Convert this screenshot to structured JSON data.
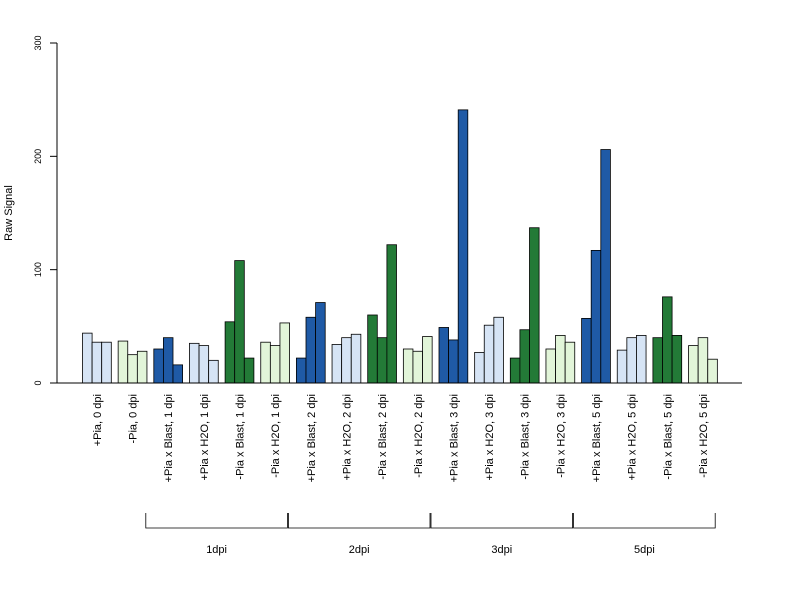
{
  "chart_data": {
    "type": "bar",
    "title": "",
    "xlabel": "",
    "ylabel": "Raw Signal",
    "ylim": [
      0,
      300
    ],
    "yticks": [
      "0",
      "100",
      "200",
      "300"
    ],
    "grid": false,
    "legend": "none",
    "colors": {
      "blue_dark": "#1f5aa6",
      "blue_light": "#d6e4f5",
      "green_dark": "#237a37",
      "green_light": "#e2f5d9"
    },
    "categories": [
      {
        "label": "+Pia, 0 dpi",
        "color": "blue_light",
        "values": [
          44,
          36,
          36
        ]
      },
      {
        "label": "-Pia, 0 dpi",
        "color": "green_light",
        "values": [
          37,
          25,
          28
        ]
      },
      {
        "label": "+Pia x Blast, 1 dpi",
        "color": "blue_dark",
        "values": [
          30,
          40,
          16
        ]
      },
      {
        "label": "+Pia x H2O, 1 dpi",
        "color": "blue_light",
        "values": [
          35,
          33,
          20
        ]
      },
      {
        "label": "-Pia x Blast, 1 dpi",
        "color": "green_dark",
        "values": [
          54,
          108,
          22
        ]
      },
      {
        "label": "-Pia x H2O, 1 dpi",
        "color": "green_light",
        "values": [
          36,
          33,
          53
        ]
      },
      {
        "label": "+Pia x Blast, 2 dpi",
        "color": "blue_dark",
        "values": [
          22,
          58,
          71
        ]
      },
      {
        "label": "+Pia x H2O, 2 dpi",
        "color": "blue_light",
        "values": [
          34,
          40,
          43
        ]
      },
      {
        "label": "-Pia x Blast, 2 dpi",
        "color": "green_dark",
        "values": [
          60,
          40,
          122
        ]
      },
      {
        "label": "-Pia x H2O, 2 dpi",
        "color": "green_light",
        "values": [
          30,
          28,
          41
        ]
      },
      {
        "label": "+Pia x Blast, 3 dpi",
        "color": "blue_dark",
        "values": [
          49,
          38,
          241
        ]
      },
      {
        "label": "+Pia x H2O, 3 dpi",
        "color": "blue_light",
        "values": [
          27,
          51,
          58
        ]
      },
      {
        "label": "-Pia x Blast, 3 dpi",
        "color": "green_dark",
        "values": [
          22,
          47,
          137
        ]
      },
      {
        "label": "-Pia x H2O, 3 dpi",
        "color": "green_light",
        "values": [
          30,
          42,
          36
        ]
      },
      {
        "label": "+Pia x Blast, 5 dpi",
        "color": "blue_dark",
        "values": [
          57,
          117,
          206
        ]
      },
      {
        "label": "+Pia x H2O, 5 dpi",
        "color": "blue_light",
        "values": [
          29,
          40,
          42
        ]
      },
      {
        "label": "-Pia x Blast, 5 dpi",
        "color": "green_dark",
        "values": [
          40,
          76,
          42
        ]
      },
      {
        "label": "-Pia x H2O, 5 dpi",
        "color": "green_light",
        "values": [
          33,
          40,
          21
        ]
      }
    ],
    "groups": [
      {
        "label": "1dpi",
        "from": 2,
        "to": 5
      },
      {
        "label": "2dpi",
        "from": 6,
        "to": 9
      },
      {
        "label": "3dpi",
        "from": 10,
        "to": 13
      },
      {
        "label": "5dpi",
        "from": 14,
        "to": 17
      }
    ]
  }
}
